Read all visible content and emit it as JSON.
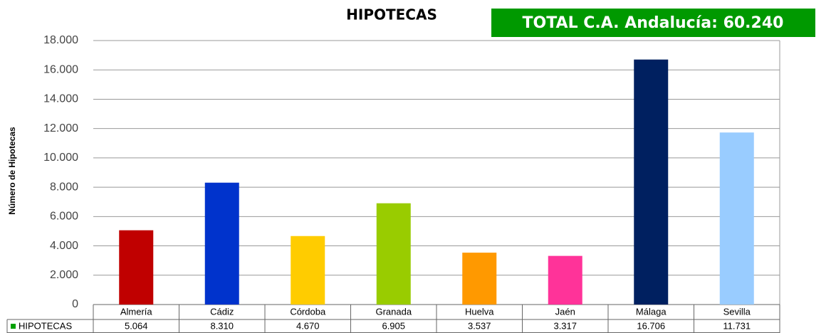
{
  "chart_data": {
    "type": "bar",
    "title": "HIPOTECAS",
    "annotation": "TOTAL C.A. Andalucía: 60.240",
    "y_label": "Número de Hipotecas",
    "categories": [
      "Almería",
      "Cádiz",
      "Córdoba",
      "Granada",
      "Huelva",
      "Jaén",
      "Málaga",
      "Sevilla"
    ],
    "series": [
      {
        "name": "HIPOTECAS",
        "color": "#00a000",
        "colors": [
          "#c00000",
          "#0033cc",
          "#ffcc00",
          "#99cc00",
          "#ff9900",
          "#ff3399",
          "#002060",
          "#99ccff"
        ],
        "values": [
          5064,
          8310,
          4670,
          6905,
          3537,
          3317,
          16706,
          11731
        ],
        "value_labels": [
          "5.064",
          "8.310",
          "4.670",
          "6.905",
          "3.537",
          "3.317",
          "16.706",
          "11.731"
        ]
      }
    ],
    "ylim": [
      0,
      18000
    ],
    "yticks": [
      0,
      {
        "value": 2000,
        "label": "2.000"
      },
      {
        "value": 4000,
        "label": "4.000"
      },
      {
        "value": 6000,
        "label": "6.000"
      },
      {
        "value": 8000,
        "label": "8.000"
      },
      {
        "value": 10000,
        "label": "10.000"
      },
      {
        "value": 12000,
        "label": "12.000"
      },
      {
        "value": 14000,
        "label": "14.000"
      },
      {
        "value": 16000,
        "label": "16.000"
      },
      {
        "value": 18000,
        "label": "18.000"
      }
    ],
    "grid": true
  }
}
